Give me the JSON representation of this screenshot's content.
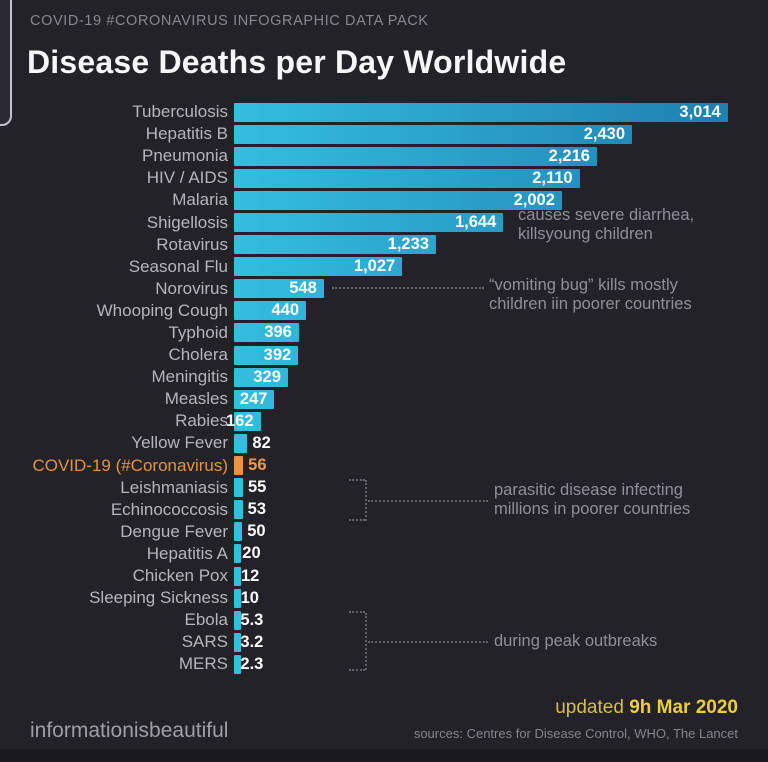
{
  "header": {
    "kicker": "COVID-19 #CORONAVIRUS INFOGRAPHIC DATA PACK",
    "title": "Disease Deaths per Day Worldwide"
  },
  "chart_data": {
    "type": "bar",
    "orientation": "horizontal",
    "title": "Disease Deaths per Day Worldwide",
    "xlim": [
      0,
      3100
    ],
    "grid": false,
    "legend": "none",
    "bar_gradient": [
      "#33bedf",
      "#1e7fb0"
    ],
    "highlight_color": "#f09140",
    "highlight_index": 16,
    "categories": [
      "Tuberculosis",
      "Hepatitis B",
      "Pneumonia",
      "HIV / AIDS",
      "Malaria",
      "Shigellosis",
      "Rotavirus",
      "Seasonal Flu",
      "Norovirus",
      "Whooping Cough",
      "Typhoid",
      "Cholera",
      "Meningitis",
      "Measles",
      "Rabies",
      "Yellow Fever",
      "COVID-19 (#Coronavirus)",
      "Leishmaniasis",
      "Echinococcosis",
      "Dengue Fever",
      "Hepatitis A",
      "Chicken Pox",
      "Sleeping Sickness",
      "Ebola",
      "SARS",
      "MERS"
    ],
    "values": [
      3014,
      2430,
      2216,
      2110,
      2002,
      1644,
      1233,
      1027,
      548,
      440,
      396,
      392,
      329,
      247,
      162,
      82,
      56,
      55,
      53,
      50,
      20,
      12,
      10,
      5.3,
      3.2,
      2.3
    ],
    "display_values": [
      "3,014",
      "2,430",
      "2,216",
      "2,110",
      "2,002",
      "1,644",
      "1,233",
      "1,027",
      "548",
      "440",
      "396",
      "392",
      "329",
      "247",
      "162",
      "82",
      "56",
      "55",
      "53",
      "50",
      "20",
      "12",
      "10",
      "5.3",
      "3.2",
      "2.3"
    ],
    "annotations": {
      "shigellosis": [
        "causes severe diarrhea,",
        "killsyoung children"
      ],
      "norovirus": [
        "“vomiting bug” kills mostly",
        "children iin poorer countries"
      ],
      "parasitic": [
        "parasitic disease infecting",
        "millions in poorer countries"
      ],
      "outbreaks": [
        "during peak outbreaks"
      ]
    }
  },
  "footer": {
    "brand": "informationisbeautiful",
    "updated_label": "updated",
    "updated_date": "9h Mar 2020",
    "sources": "sources: Centres for Disease Control, WHO, The Lancet"
  }
}
